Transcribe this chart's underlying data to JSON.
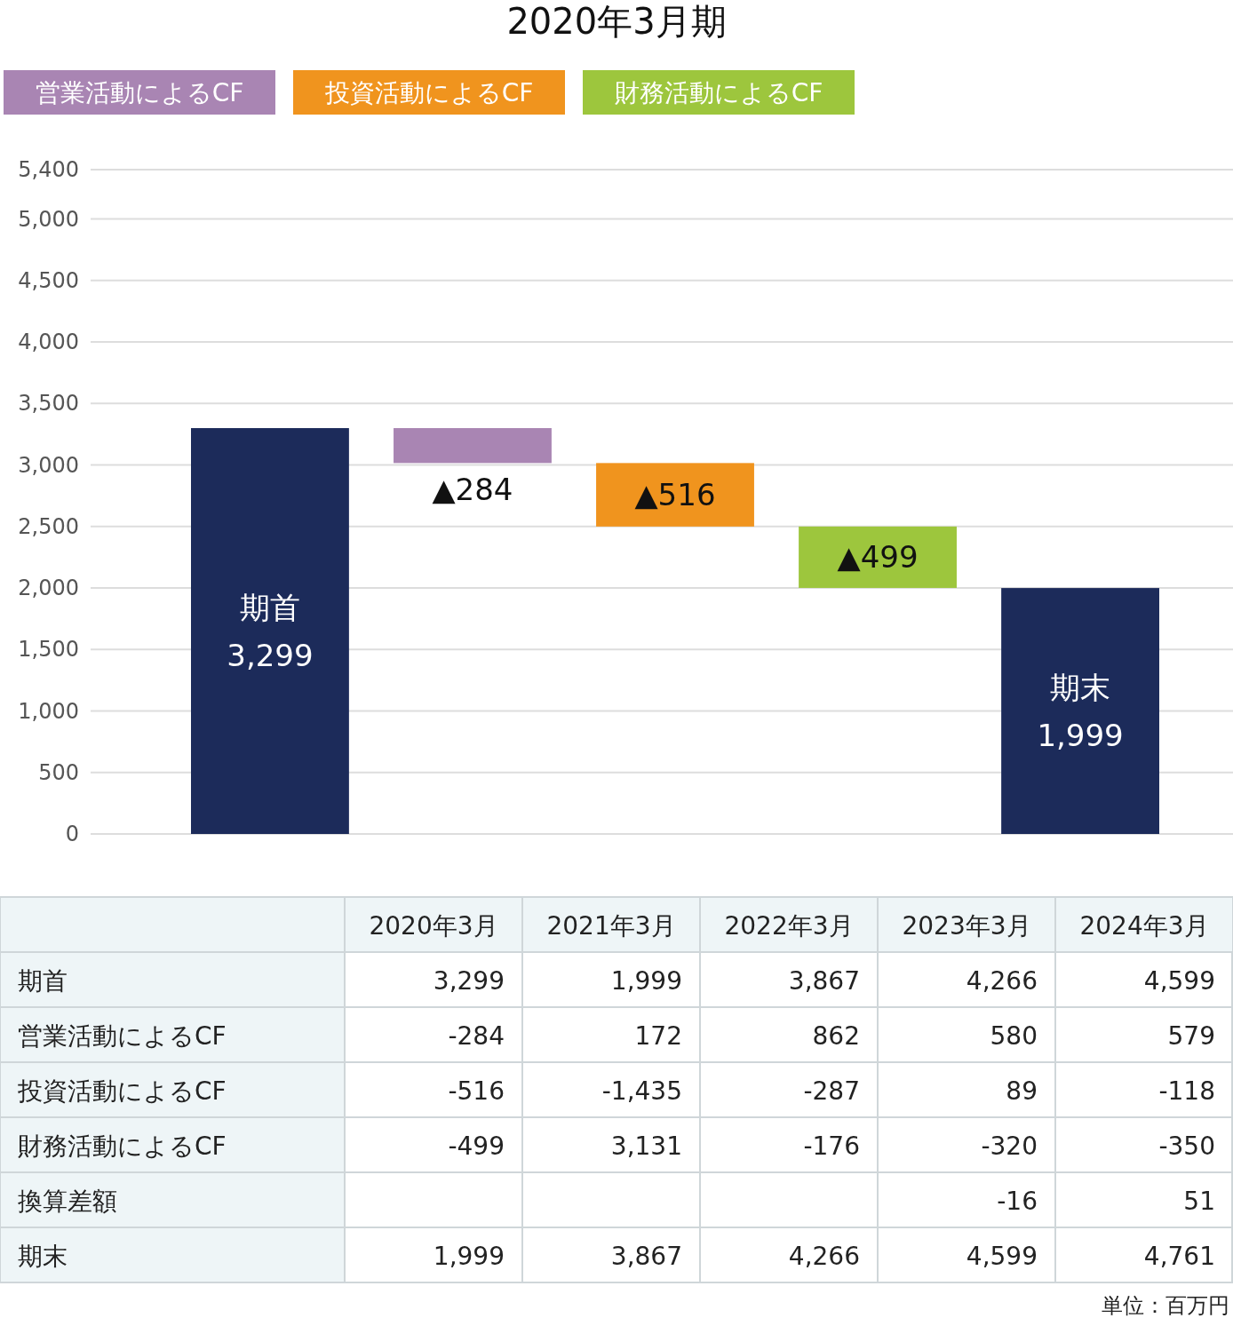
{
  "chart_data": [
    {
      "type": "bar",
      "title": "2020年3月期",
      "categories": [
        null,
        null,
        null,
        null,
        null
      ],
      "series": [
        {
          "color": "#1c2b5a",
          "values": [
            3299,
            null,
            null,
            null,
            1999
          ],
          "base": [
            0,
            null,
            null,
            null,
            0
          ],
          "value_labels": [
            "期首\n3,299",
            null,
            null,
            null,
            "期末\n1,999"
          ]
        },
        {
          "name": "営業活動によるCF",
          "color": "#a985b3",
          "values": [
            null,
            -284,
            null,
            null,
            null
          ],
          "base": [
            null,
            3299,
            null,
            null,
            null
          ],
          "value_labels": [
            null,
            "▲284",
            null,
            null,
            null
          ]
        },
        {
          "name": "投資活動によるCF",
          "color": "#f0941e",
          "values": [
            null,
            null,
            -516,
            null,
            null
          ],
          "base": [
            null,
            null,
            3015,
            null,
            null
          ],
          "value_labels": [
            null,
            null,
            "▲516",
            null,
            null
          ]
        },
        {
          "name": "財務活動によるCF",
          "color": "#9dc63d",
          "values": [
            null,
            null,
            null,
            -499,
            null
          ],
          "base": [
            null,
            null,
            null,
            2499,
            null
          ],
          "value_labels": [
            null,
            null,
            null,
            "▲499",
            null
          ]
        }
      ],
      "ylim": [
        0,
        5400
      ],
      "yticks": [
        0,
        500,
        {
          "value": 1000,
          "label": "1,000"
        },
        {
          "value": 1500,
          "label": "1,500"
        },
        {
          "value": 2000,
          "label": "2,000"
        },
        {
          "value": 2500,
          "label": "2,500"
        },
        {
          "value": 3000,
          "label": "3,000"
        },
        {
          "value": 3500,
          "label": "3,500"
        },
        {
          "value": 4000,
          "label": "4,000"
        },
        {
          "value": 4500,
          "label": "4,500"
        },
        {
          "value": 5000,
          "label": "5,000"
        },
        {
          "value": 5400,
          "label": "5,400"
        }
      ],
      "grid": "y",
      "legend": "top left"
    },
    {
      "type": "other",
      "categories": [
        "2020年3月",
        "2021年3月",
        "2022年3月",
        "2023年3月",
        "2024年3月"
      ],
      "y_categories": [
        "期首",
        "営業活動によるCF",
        "投資活動によるCF",
        "財務活動によるCF",
        "換算差額",
        "期末"
      ],
      "cell_labels": [
        [
          "3,299",
          "1,999",
          "3,867",
          "4,266",
          "4,599"
        ],
        [
          "-284",
          "172",
          "862",
          "580",
          "579"
        ],
        [
          "-516",
          "-1,435",
          "-287",
          "89",
          "-118"
        ],
        [
          "-499",
          "3,131",
          "-176",
          "-320",
          "-350"
        ],
        [
          null,
          null,
          null,
          "-16",
          "51"
        ],
        [
          "1,999",
          "3,867",
          "4,266",
          "4,599",
          "4,761"
        ]
      ],
      "annotations": [
        "単位：百万円"
      ]
    }
  ]
}
